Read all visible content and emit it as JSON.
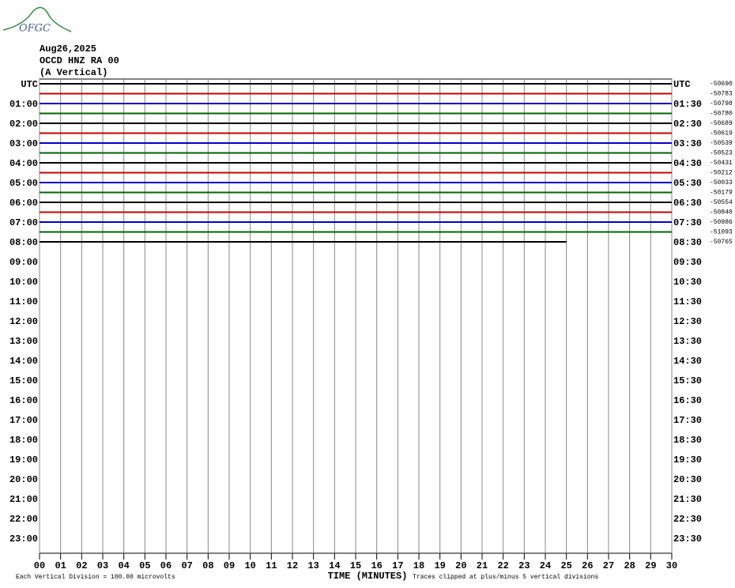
{
  "chart_data": {
    "type": "helicorder",
    "logo": "OFGC",
    "title_lines": [
      "Aug26,2025",
      "OCCD HNZ RA 00",
      "(A Vertical)"
    ],
    "row_labels_left": [
      "UTC",
      "01:00",
      "02:00",
      "03:00",
      "04:00",
      "05:00",
      "06:00",
      "07:00",
      "08:00",
      "09:00",
      "10:00",
      "11:00",
      "12:00",
      "13:00",
      "14:00",
      "15:00",
      "16:00",
      "17:00",
      "18:00",
      "19:00",
      "20:00",
      "21:00",
      "22:00",
      "23:00"
    ],
    "row_labels_right": [
      "UTC",
      "01:30",
      "02:30",
      "03:30",
      "04:30",
      "05:30",
      "06:30",
      "07:30",
      "08:30",
      "09:30",
      "10:30",
      "11:30",
      "12:30",
      "13:30",
      "14:30",
      "15:30",
      "16:30",
      "17:30",
      "18:30",
      "19:30",
      "20:30",
      "21:30",
      "22:30",
      "23:30"
    ],
    "xlim": [
      0,
      30
    ],
    "xticks": [
      {
        "value": 0,
        "label": "00"
      },
      {
        "value": 1,
        "label": "01"
      },
      {
        "value": 2,
        "label": "02"
      },
      {
        "value": 3,
        "label": "03"
      },
      {
        "value": 4,
        "label": "04"
      },
      {
        "value": 5,
        "label": "05"
      },
      {
        "value": 6,
        "label": "06"
      },
      {
        "value": 7,
        "label": "07"
      },
      {
        "value": 8,
        "label": "08"
      },
      {
        "value": 9,
        "label": "09"
      },
      10,
      11,
      12,
      13,
      14,
      15,
      16,
      17,
      18,
      19,
      20,
      21,
      22,
      23,
      24,
      25,
      26,
      27,
      28,
      29,
      30
    ],
    "x_label": "TIME (MINUTES)",
    "note_left": "Each Vertical Division =  100.00 microvolts",
    "note_right": "Traces clipped at plus/minus 5 vertical divisions",
    "grid": true,
    "traces": [
      {
        "color": "#000000",
        "label": -50690,
        "x_end": 30
      },
      {
        "color": "#cc0000",
        "label": -50783,
        "x_end": 30
      },
      {
        "color": "#0000cc",
        "label": -50798,
        "x_end": 30
      },
      {
        "color": "#006600",
        "label": -50780,
        "x_end": 30
      },
      {
        "color": "#000000",
        "label": -50689,
        "x_end": 30
      },
      {
        "color": "#cc0000",
        "label": -50619,
        "x_end": 30
      },
      {
        "color": "#0000cc",
        "label": -50539,
        "x_end": 30
      },
      {
        "color": "#006600",
        "label": -50523,
        "x_end": 30
      },
      {
        "color": "#000000",
        "label": -50431,
        "x_end": 30
      },
      {
        "color": "#cc0000",
        "label": -50212,
        "x_end": 30
      },
      {
        "color": "#0000cc",
        "label": -50033,
        "x_end": 30
      },
      {
        "color": "#006600",
        "label": -50179,
        "x_end": 30
      },
      {
        "color": "#000000",
        "label": -50554,
        "x_end": 30
      },
      {
        "color": "#cc0000",
        "label": -50840,
        "x_end": 30
      },
      {
        "color": "#0000cc",
        "label": -50986,
        "x_end": 30
      },
      {
        "color": "#006600",
        "label": -51093,
        "x_end": 30
      },
      {
        "color": "#000000",
        "label": -50765,
        "x_end": 25
      }
    ]
  }
}
